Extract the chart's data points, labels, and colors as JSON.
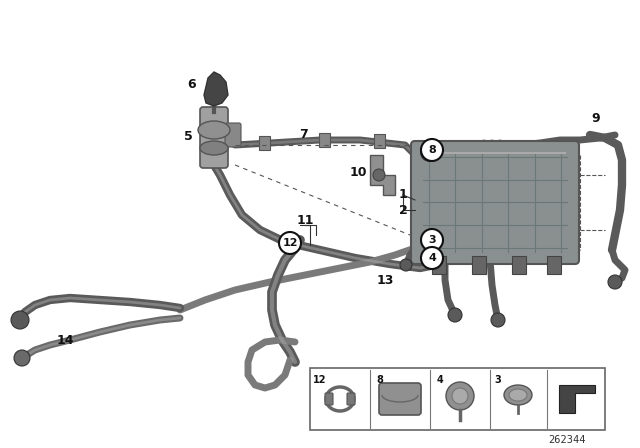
{
  "bg_color": "#ffffff",
  "part_number": "262344",
  "hose_color": "#5a5a5a",
  "hose_light": "#888888",
  "hose_dark": "#3a3a3a",
  "callout_circled": [
    "3",
    "4",
    "8",
    "12"
  ]
}
